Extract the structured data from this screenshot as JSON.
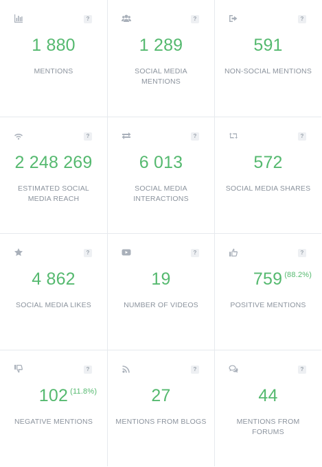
{
  "colors": {
    "value": "#55b96f",
    "label": "#8b939d",
    "icon": "#a9b0ba",
    "border": "#e6e9ed"
  },
  "help_symbol": "?",
  "cards": [
    {
      "icon": "bar-chart-icon",
      "value": "1 880",
      "label": "MENTIONS"
    },
    {
      "icon": "users-icon",
      "value": "1 289",
      "label": "SOCIAL MEDIA MENTIONS"
    },
    {
      "icon": "sign-out-icon",
      "value": "591",
      "label": "NON-SOCIAL MENTIONS"
    },
    {
      "icon": "wifi-icon",
      "value": "2 248 269",
      "label": "ESTIMATED SOCIAL MEDIA REACH"
    },
    {
      "icon": "exchange-icon",
      "value": "6 013",
      "label": "SOCIAL MEDIA INTERACTIONS"
    },
    {
      "icon": "retweet-icon",
      "value": "572",
      "label": "SOCIAL MEDIA SHARES"
    },
    {
      "icon": "star-icon",
      "value": "4 862",
      "label": "SOCIAL MEDIA LIKES"
    },
    {
      "icon": "youtube-icon",
      "value": "19",
      "label": "NUMBER OF VIDEOS"
    },
    {
      "icon": "thumbs-up-icon",
      "value": "759",
      "percent": "(88.2%)",
      "label": "POSITIVE MENTIONS"
    },
    {
      "icon": "thumbs-down-icon",
      "value": "102",
      "percent": "(11.8%)",
      "label": "NEGATIVE MENTIONS"
    },
    {
      "icon": "rss-icon",
      "value": "27",
      "label": "MENTIONS FROM BLOGS"
    },
    {
      "icon": "comments-icon",
      "value": "44",
      "label": "MENTIONS FROM FORUMS"
    }
  ]
}
